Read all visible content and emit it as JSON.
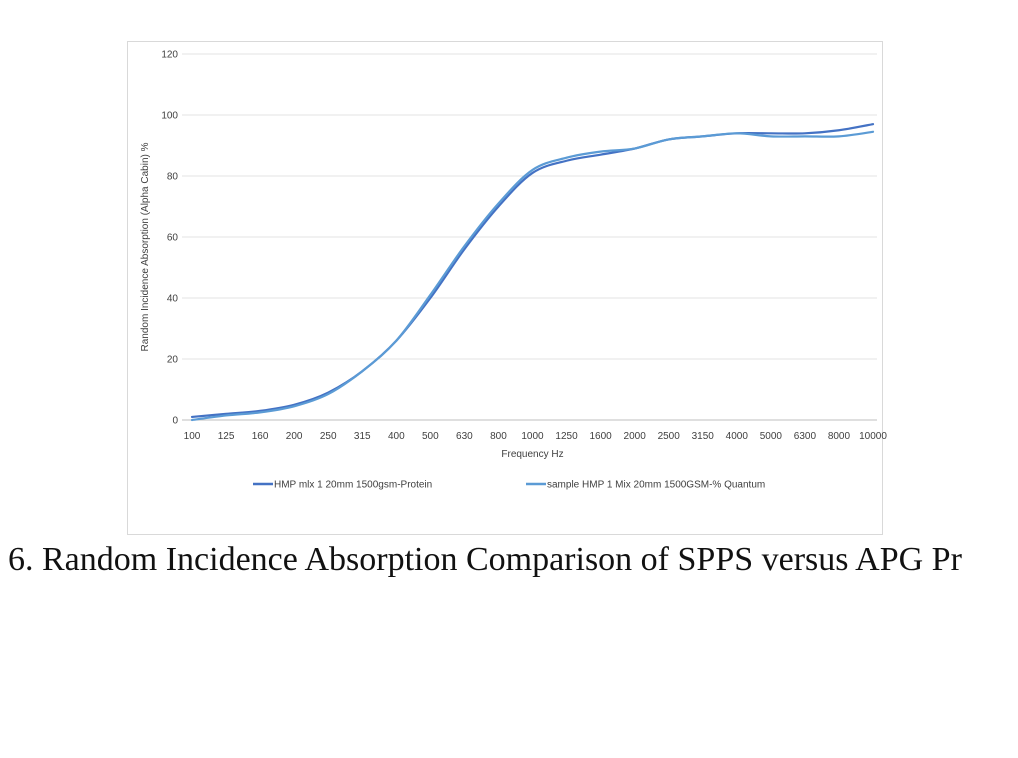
{
  "chart_data": {
    "type": "line",
    "title": "",
    "xlabel": "Frequency Hz",
    "ylabel": "Random Incidence Absorption (Alpha Cabin) %",
    "ylim": [
      0,
      120
    ],
    "yticks": [
      0,
      20,
      40,
      60,
      80,
      100,
      120
    ],
    "categories": [
      "100",
      "125",
      "160",
      "200",
      "250",
      "315",
      "400",
      "500",
      "630",
      "800",
      "1000",
      "1250",
      "1600",
      "2000",
      "2500",
      "3150",
      "4000",
      "5000",
      "6300",
      "8000",
      "10000"
    ],
    "series": [
      {
        "name": "HMP mlx 1 20mm 1500gsm-Protein",
        "color": "#4472c4",
        "values": [
          1,
          2,
          3,
          5,
          9,
          16,
          26,
          40,
          56,
          70,
          81,
          85,
          87,
          89,
          92,
          93,
          94,
          94,
          94,
          95,
          97
        ]
      },
      {
        "name": "sample HMP 1 Mix 20mm 1500GSM-% Quantum",
        "color": "#5b9bd5",
        "values": [
          0,
          1.5,
          2.5,
          4.5,
          8.5,
          16,
          26,
          41,
          57,
          71,
          82,
          86,
          88,
          89,
          92,
          93,
          94,
          93,
          93,
          93,
          94.5
        ]
      }
    ],
    "legend_position": "bottom"
  },
  "caption": "6. Random Incidence Absorption Comparison of SPPS versus APG Pr"
}
